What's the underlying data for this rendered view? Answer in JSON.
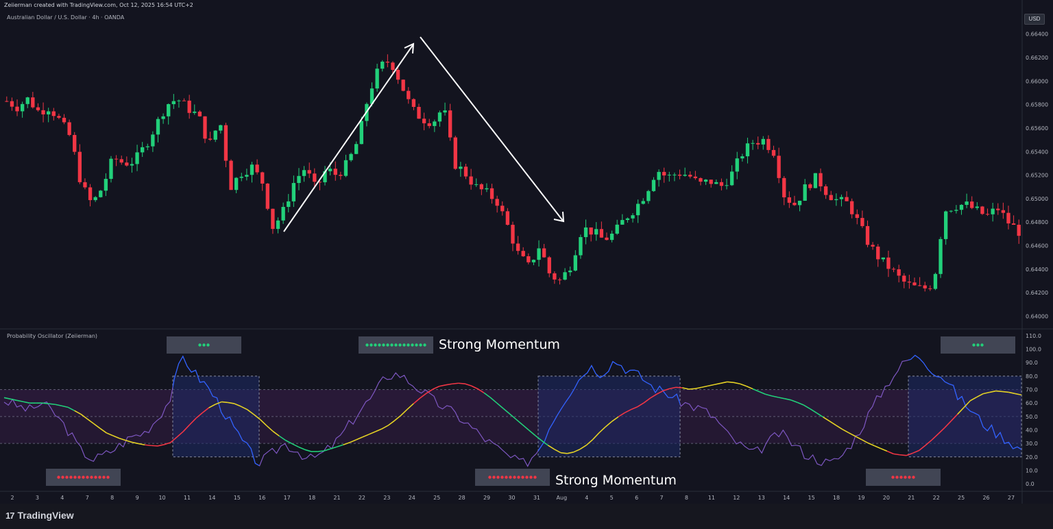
{
  "header": {
    "credit": "Zeiierman created with TradingView.com, Oct 12, 2025 16:54 UTC+2",
    "symbol": "Australian Dollar / U.S. Dollar · 4h · OANDA",
    "currency": "USD"
  },
  "oscillator": {
    "title": "Probability Oscillator (Zeiierman)"
  },
  "annotations": {
    "strong_momentum_top": "Strong Momentum",
    "strong_momentum_bottom": "Strong Momentum"
  },
  "branding": {
    "logo": "17",
    "name": "TradingView"
  },
  "colors": {
    "background": "#13141f",
    "bull": "#22d07a",
    "bear": "#f23645",
    "grid": "#2a2e39",
    "osc_line": "#7e57c2",
    "osc_blue": "#2962ff",
    "ma_green": "#22d07a",
    "ma_yellow": "#e5d224",
    "ma_red": "#f23645"
  },
  "chart_data": [
    {
      "type": "candlestick",
      "name": "price",
      "y_ticks": [
        "0.66400",
        "0.66200",
        "0.66000",
        "0.65800",
        "0.65600",
        "0.65400",
        "0.65200",
        "0.65000",
        "0.64800",
        "0.64600",
        "0.64400",
        "0.64200",
        "0.64000"
      ],
      "ylim": [
        0.6395,
        0.6648
      ],
      "x_ticks": [
        "2",
        "3",
        "4",
        "7",
        "8",
        "9",
        "10",
        "11",
        "14",
        "15",
        "16",
        "17",
        "18",
        "21",
        "22",
        "23",
        "24",
        "25",
        "28",
        "29",
        "30",
        "31",
        "Aug",
        "4",
        "5",
        "6",
        "7",
        "8",
        "11",
        "12",
        "13",
        "14",
        "15",
        "18",
        "19",
        "20",
        "21",
        "22",
        "25",
        "26",
        "27"
      ],
      "close_path": [
        0.6583,
        0.6578,
        0.6585,
        0.6574,
        0.6578,
        0.6566,
        0.6552,
        0.6512,
        0.6495,
        0.651,
        0.6535,
        0.653,
        0.6532,
        0.6545,
        0.6562,
        0.658,
        0.6585,
        0.6577,
        0.657,
        0.6545,
        0.6567,
        0.651,
        0.6522,
        0.6527,
        0.6514,
        0.6475,
        0.649,
        0.6515,
        0.6526,
        0.6508,
        0.6525,
        0.652,
        0.653,
        0.655,
        0.659,
        0.6612,
        0.6618,
        0.6598,
        0.6576,
        0.6568,
        0.6565,
        0.6578,
        0.653,
        0.6522,
        0.651,
        0.6505,
        0.6498,
        0.6477,
        0.6453,
        0.6442,
        0.646,
        0.6435,
        0.643,
        0.6445,
        0.6475,
        0.6472,
        0.6465,
        0.647,
        0.6483,
        0.6492,
        0.6505,
        0.6525,
        0.6518,
        0.6522,
        0.652,
        0.6512,
        0.6515,
        0.651,
        0.652,
        0.6538,
        0.6548,
        0.655,
        0.654,
        0.6502,
        0.6495,
        0.651,
        0.6518,
        0.6505,
        0.6498,
        0.6496,
        0.6478,
        0.646,
        0.6448,
        0.644,
        0.643,
        0.6425,
        0.6423,
        0.6428,
        0.649,
        0.6494,
        0.6495,
        0.649,
        0.6485,
        0.6492,
        0.648,
        0.6472
      ],
      "candle_count": 195
    },
    {
      "type": "line",
      "name": "oscillator",
      "y_ticks": [
        "110.0",
        "100.0",
        "90.0",
        "80.0",
        "70.0",
        "60.0",
        "50.0",
        "40.0",
        "30.0",
        "20.0",
        "10.0",
        "0.0"
      ],
      "ylim": [
        -3,
        112
      ],
      "bands": {
        "upper": 70,
        "middle": 50,
        "lower": 30,
        "strong_upper": 80,
        "strong_lower": 20
      },
      "osc_path": [
        62,
        58,
        55,
        60,
        52,
        40,
        25,
        18,
        22,
        28,
        35,
        38,
        48,
        62,
        95,
        82,
        72,
        58,
        42,
        28,
        15,
        22,
        30,
        25,
        18,
        22,
        30,
        42,
        55,
        65,
        80,
        82,
        75,
        68,
        60,
        55,
        48,
        40,
        32,
        25,
        18,
        15,
        25,
        45,
        62,
        75,
        88,
        82,
        92,
        85,
        80,
        72,
        68,
        62,
        58,
        55,
        48,
        35,
        28,
        22,
        30,
        38,
        30,
        22,
        18,
        15,
        22,
        35,
        52,
        68,
        82,
        92,
        95,
        85,
        78,
        65,
        55,
        45,
        38,
        32,
        25
      ],
      "ma_path": [
        64,
        62,
        60,
        60,
        59,
        57,
        52,
        45,
        38,
        34,
        31,
        29,
        28,
        30,
        38,
        48,
        56,
        61,
        60,
        56,
        49,
        40,
        33,
        28,
        24,
        24,
        27,
        30,
        34,
        38,
        42,
        49,
        58,
        66,
        72,
        74,
        75,
        72,
        66,
        58,
        50,
        42,
        34,
        27,
        22,
        24,
        30,
        40,
        48,
        54,
        58,
        65,
        70,
        72,
        70,
        72,
        74,
        76,
        74,
        70,
        66,
        64,
        62,
        58,
        52,
        46,
        40,
        35,
        30,
        26,
        22,
        21,
        25,
        33,
        42,
        52,
        62,
        67,
        69,
        68,
        66
      ],
      "ma_color_regimes": [
        "green",
        "yellow",
        "red",
        "yellow",
        "green",
        "yellow",
        "red",
        "green",
        "yellow",
        "red",
        "yellow",
        "green",
        "yellow",
        "red",
        "yellow"
      ]
    }
  ]
}
